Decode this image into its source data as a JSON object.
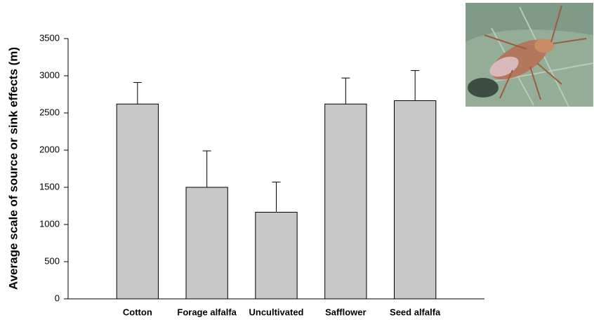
{
  "chart_data": {
    "type": "bar",
    "y_label": "Average scale of source or sink effects (m)",
    "categories": [
      "Cotton",
      "Forage alfalfa",
      "Uncultivated",
      "Safflower",
      "Seed alfalfa"
    ],
    "values": [
      2620,
      1500,
      1165,
      2620,
      2665
    ],
    "errors": [
      290,
      490,
      405,
      350,
      405
    ],
    "color": "#c8c8c8",
    "ylim": [
      0,
      3500
    ],
    "yticks": [
      0,
      500,
      1000,
      1500,
      2000,
      2500,
      3000,
      3500
    ],
    "grid": false
  }
}
